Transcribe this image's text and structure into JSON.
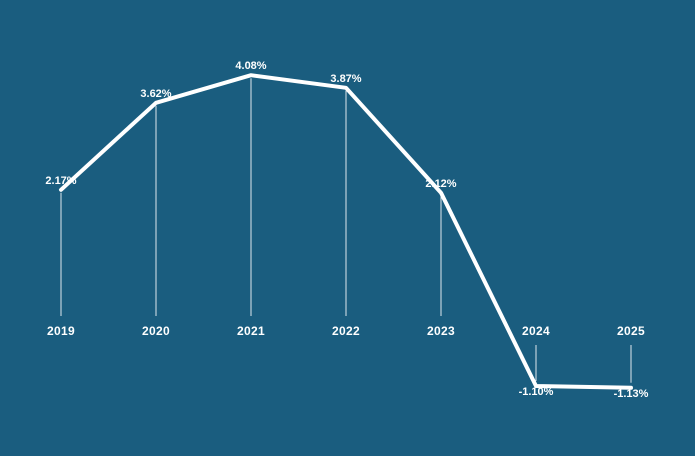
{
  "chart_data": {
    "type": "line",
    "title": "",
    "categories": [
      "2019",
      "2020",
      "2021",
      "2022",
      "2023",
      "2024",
      "2025"
    ],
    "values": [
      2.17,
      3.62,
      4.08,
      3.87,
      2.12,
      -1.1,
      -1.13
    ],
    "point_labels": [
      "2.17%",
      "3.62%",
      "4.08%",
      "3.87%",
      "2.12%",
      "-1.10%",
      "-1.13%"
    ],
    "xlabel": "",
    "ylabel": "",
    "ylim": [
      -2.3,
      5.3
    ],
    "x_axis_at_zero": true,
    "grid": false,
    "legend": "none",
    "label_position": "above point for positive values, below point for negative values",
    "colors": {
      "background": "#1a5d7f",
      "line": "#ffffff",
      "stem": "#ffffff",
      "value_text": "#ffffff",
      "axis_text": "#ffffff"
    }
  }
}
